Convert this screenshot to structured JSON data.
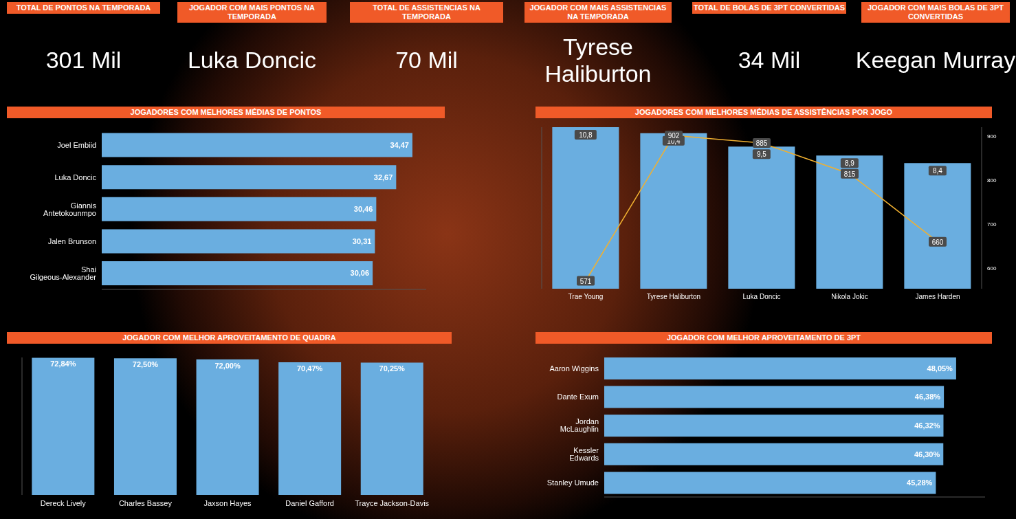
{
  "cards": [
    {
      "title": "TOTAL DE PONTOS NA TEMPORADA",
      "value": "301 Mil"
    },
    {
      "title": "JOGADOR COM MAIS PONTOS NA TEMPORADA",
      "value": "Luka Doncic"
    },
    {
      "title": "TOTAL DE ASSISTENCIAS NA TEMPORADA",
      "value": "70 Mil"
    },
    {
      "title": "JOGADOR COM MAIS ASSISTENCIAS NA TEMPORADA",
      "value": "Tyrese Haliburton"
    },
    {
      "title": "TOTAL DE BOLAS DE 3PT CONVERTIDAS",
      "value": "34 Mil"
    },
    {
      "title": "JOGADOR COM MAIS BOLAS DE 3PT CONVERTIDAS",
      "value": "Keegan Murray"
    }
  ],
  "chart_data": [
    {
      "type": "bar",
      "title": "JOGADORES COM MELHORES MÉDIAS DE PONTOS",
      "orientation": "horizontal",
      "categories": [
        "Joel Embiid",
        "Luka Doncic",
        "Giannis Antetokounmpo",
        "Jalen Brunson",
        "Shai Gilgeous-Alexander"
      ],
      "values": [
        34.47,
        32.67,
        30.46,
        30.31,
        30.06
      ],
      "value_labels": [
        "34,47",
        "32,67",
        "30,46",
        "30,31",
        "30,06"
      ],
      "xlim": [
        0,
        36
      ],
      "color": "#6aaee0",
      "data_labels": true,
      "tick_labels": "y"
    },
    {
      "type": "bar",
      "title": "JOGADORES COM MELHORES MÉDIAS DE ASSISTÊNCIAS POR JOGO",
      "categories": [
        "Trae Young",
        "Tyrese Haliburton",
        "Luka Doncic",
        "Nikola Jokic",
        "James Harden"
      ],
      "ylim": [
        0,
        10.8
      ],
      "y2lim": [
        553,
        921
      ],
      "y2ticks": [
        600,
        700,
        800,
        900
      ],
      "data_labels": true,
      "series": [
        {
          "type": "bar",
          "color": "#6aaee0",
          "values": [
            10.8,
            10.4,
            9.5,
            8.9,
            8.4
          ],
          "value_labels": [
            "10,8",
            "10,4",
            "9,5",
            "8,9",
            "8,4"
          ]
        },
        {
          "type": "line",
          "axis": "y2",
          "color": "#f0b030",
          "values": [
            571,
            902,
            885,
            815,
            660
          ]
        }
      ]
    },
    {
      "type": "bar",
      "title": "JOGADOR COM MELHOR APROVEITAMENTO DE QUADRA",
      "categories": [
        "Dereck Lively",
        "Charles Bassey",
        "Jaxson Hayes",
        "Daniel Gafford",
        "Trayce Jackson-Davis"
      ],
      "values": [
        72.84,
        72.5,
        72.0,
        70.47,
        70.25
      ],
      "value_labels": [
        "72,84%",
        "72,50%",
        "72,00%",
        "70,47%",
        "70,25%"
      ],
      "ylim": [
        0,
        73
      ],
      "color": "#6aaee0",
      "data_labels": true,
      "tick_labels": "x"
    },
    {
      "type": "bar",
      "title": "JOGADOR COM MELHOR APROVEITAMENTO DE 3PT",
      "orientation": "horizontal",
      "categories": [
        "Aaron Wiggins",
        "Dante Exum",
        "Jordan McLaughlin",
        "Kessler Edwards",
        "Stanley Umude"
      ],
      "values": [
        48.05,
        46.38,
        46.32,
        46.3,
        45.28
      ],
      "value_labels": [
        "48,05%",
        "46,38%",
        "46,32%",
        "46,30%",
        "45,28%"
      ],
      "xlim": [
        0,
        52
      ],
      "color": "#6aaee0",
      "data_labels": true,
      "tick_labels": "y"
    }
  ]
}
